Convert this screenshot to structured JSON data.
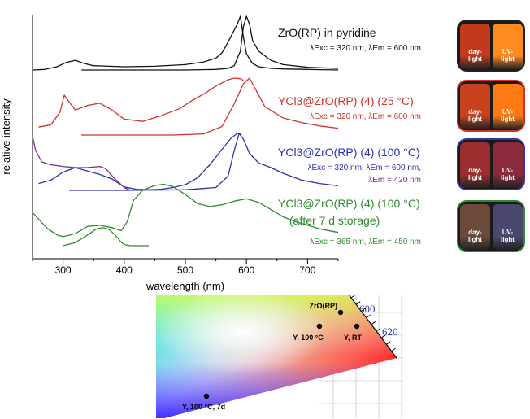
{
  "chart_data": [
    {
      "type": "line",
      "xlabel": "wavelength (nm)",
      "ylabel": "relative intensity",
      "xlim": [
        250,
        750
      ],
      "xticks": [
        300,
        400,
        500,
        600,
        700
      ],
      "series_labels": [
        {
          "title": "ZrO(RP) in pyridine",
          "subtitle": "λExc = 320 nm, λEm = 600 nm",
          "color": "#111111"
        },
        {
          "title": "YCl3@ZrO(RP) (4) (25 °C)",
          "subtitle": "λExc = 320 nm, λEm = 600 nm",
          "color": "#d0312d"
        },
        {
          "title": "YCl3@ZrO(RP) (4) (100 °C)",
          "subtitle": "λExc = 320 nm, λEm = 600 nm,",
          "subtitle2": "λEm = 420 nm",
          "color": "#2b2fb5",
          "color2": "#7a2a88"
        },
        {
          "title": "YCl3@ZrO(RP) (4) (100 °C)",
          "title2": "(after 7 d storage)",
          "subtitle": "λExc = 365 nm, λEm = 450 nm",
          "color": "#2e8b2e"
        }
      ],
      "series": [
        {
          "name": "ZrO(RP) in pyridine excitation",
          "color": "#111111",
          "x": [
            250,
            270,
            290,
            305,
            320,
            335,
            350,
            400,
            450,
            500,
            530,
            550,
            560,
            570,
            578,
            585,
            590,
            595,
            600,
            610,
            620,
            640,
            660,
            700,
            750
          ],
          "y": [
            0.0,
            0.01,
            0.06,
            0.14,
            0.18,
            0.12,
            0.08,
            0.06,
            0.07,
            0.1,
            0.15,
            0.22,
            0.32,
            0.52,
            0.7,
            0.85,
            1.0,
            0.62,
            0.3,
            0.12,
            0.06,
            0.03,
            0.02,
            0.01,
            0.0
          ]
        },
        {
          "name": "ZrO(RP) in pyridine emission",
          "color": "#111111",
          "x": [
            330,
            400,
            500,
            550,
            570,
            580,
            590,
            595,
            600,
            605,
            610,
            620,
            640,
            660,
            700,
            750
          ],
          "y": [
            0.0,
            0.0,
            0.0,
            0.01,
            0.03,
            0.08,
            0.35,
            0.8,
            1.0,
            0.85,
            0.55,
            0.35,
            0.18,
            0.1,
            0.05,
            0.03
          ]
        },
        {
          "name": "YCl3@ZrO(RP) (25 °C) excitation",
          "color": "#d0312d",
          "x": [
            260,
            280,
            295,
            302,
            310,
            320,
            340,
            360,
            380,
            400,
            430,
            460,
            490,
            510,
            530,
            550,
            570,
            580,
            590,
            595
          ],
          "y": [
            0.14,
            0.18,
            0.4,
            0.7,
            0.58,
            0.44,
            0.52,
            0.56,
            0.44,
            0.28,
            0.24,
            0.34,
            0.46,
            0.6,
            0.72,
            0.86,
            0.97,
            1.0,
            0.99,
            0.96
          ]
        },
        {
          "name": "YCl3@ZrO(RP) (25 °C) emission",
          "color": "#d0312d",
          "x": [
            330,
            400,
            480,
            530,
            560,
            580,
            595,
            605,
            615,
            630,
            660,
            690,
            720,
            750
          ],
          "y": [
            0.0,
            0.0,
            0.0,
            0.02,
            0.15,
            0.55,
            0.9,
            1.0,
            0.8,
            0.5,
            0.3,
            0.22,
            0.16,
            0.12
          ]
        },
        {
          "name": "YCl3@ZrO(RP) (100 °C) excitation 600 nm",
          "color": "#2b2fb5",
          "x": [
            260,
            280,
            300,
            320,
            340,
            360,
            380,
            400,
            420,
            440,
            460,
            480,
            500,
            520,
            540,
            560,
            575,
            585,
            592
          ],
          "y": [
            0.12,
            0.18,
            0.32,
            0.4,
            0.34,
            0.28,
            0.2,
            0.06,
            0.02,
            0.01,
            0.02,
            0.05,
            0.1,
            0.22,
            0.45,
            0.72,
            0.92,
            1.0,
            0.98
          ]
        },
        {
          "name": "YCl3@ZrO(RP) (100 °C) emission",
          "color": "#2b2fb5",
          "x": [
            310,
            400,
            500,
            550,
            570,
            580,
            588,
            595,
            605,
            620,
            640,
            660,
            690,
            720,
            750
          ],
          "y": [
            0.0,
            0.0,
            0.01,
            0.05,
            0.25,
            0.7,
            1.0,
            0.9,
            0.65,
            0.48,
            0.4,
            0.3,
            0.18,
            0.12,
            0.08
          ]
        },
        {
          "name": "YCl3@ZrO(RP) (100 °C) excitation 420 nm",
          "color": "#7a2a88",
          "x": [
            250,
            255,
            265,
            280,
            300,
            320,
            340,
            360,
            370,
            385,
            400,
            410
          ],
          "y": [
            0.95,
            0.7,
            0.5,
            0.45,
            0.42,
            0.4,
            0.4,
            0.42,
            0.38,
            0.2,
            0.05,
            0.0
          ]
        },
        {
          "name": "after 7 d storage excitation",
          "color": "#2e8b2e",
          "x": [
            300,
            320,
            340,
            355,
            365,
            375,
            385,
            395,
            400,
            410,
            420,
            440
          ],
          "y": [
            0.0,
            0.05,
            0.18,
            0.28,
            0.3,
            0.27,
            0.18,
            0.06,
            0.02,
            0.0,
            0.0,
            0.0
          ]
        },
        {
          "name": "after 7 d storage emission",
          "color": "#2e8b2e",
          "x": [
            250,
            262,
            275,
            290,
            300,
            320,
            340,
            360,
            380,
            395,
            405,
            415,
            430,
            450,
            465,
            480,
            500,
            520,
            540,
            560,
            580,
            600,
            620,
            640,
            660,
            680,
            700,
            720,
            750
          ],
          "y": [
            0.55,
            0.42,
            0.28,
            0.18,
            0.15,
            0.2,
            0.32,
            0.34,
            0.3,
            0.25,
            0.4,
            0.75,
            0.92,
            1.0,
            1.02,
            0.98,
            0.85,
            0.7,
            0.65,
            0.68,
            0.74,
            0.78,
            0.72,
            0.6,
            0.48,
            0.4,
            0.34,
            0.28,
            0.22
          ]
        }
      ]
    },
    {
      "type": "scatter",
      "x_tick_labels": [
        "600",
        "620"
      ],
      "points": [
        {
          "label": "ZrO(RP)"
        },
        {
          "label": "Y, 100 °C"
        },
        {
          "label": "Y, RT"
        },
        {
          "label": "Y, 100 °C, 7d"
        }
      ]
    }
  ],
  "photos": [
    {
      "border": "#222222",
      "left_bg": "#c23a1c",
      "left_label": "day-\nlight",
      "right_bg": "#ff8a1e",
      "right_label": "UV-\nlight"
    },
    {
      "border": "#d0312d",
      "left_bg": "#c8421e",
      "left_label": "day-\nlight",
      "right_bg": "#ff7a14",
      "right_label": "UV-\nlight"
    },
    {
      "border": "#3334a8",
      "left_bg": "#9b2f2f",
      "left_label": "day-\nlight",
      "right_bg": "#8a2a3a",
      "right_label": "UV-\nlight"
    },
    {
      "border": "#2e8b2e",
      "left_bg": "#6b4a3a",
      "left_label": "day-\nlight",
      "right_bg": "#4b4870",
      "right_label": "UV-\nlight"
    }
  ]
}
